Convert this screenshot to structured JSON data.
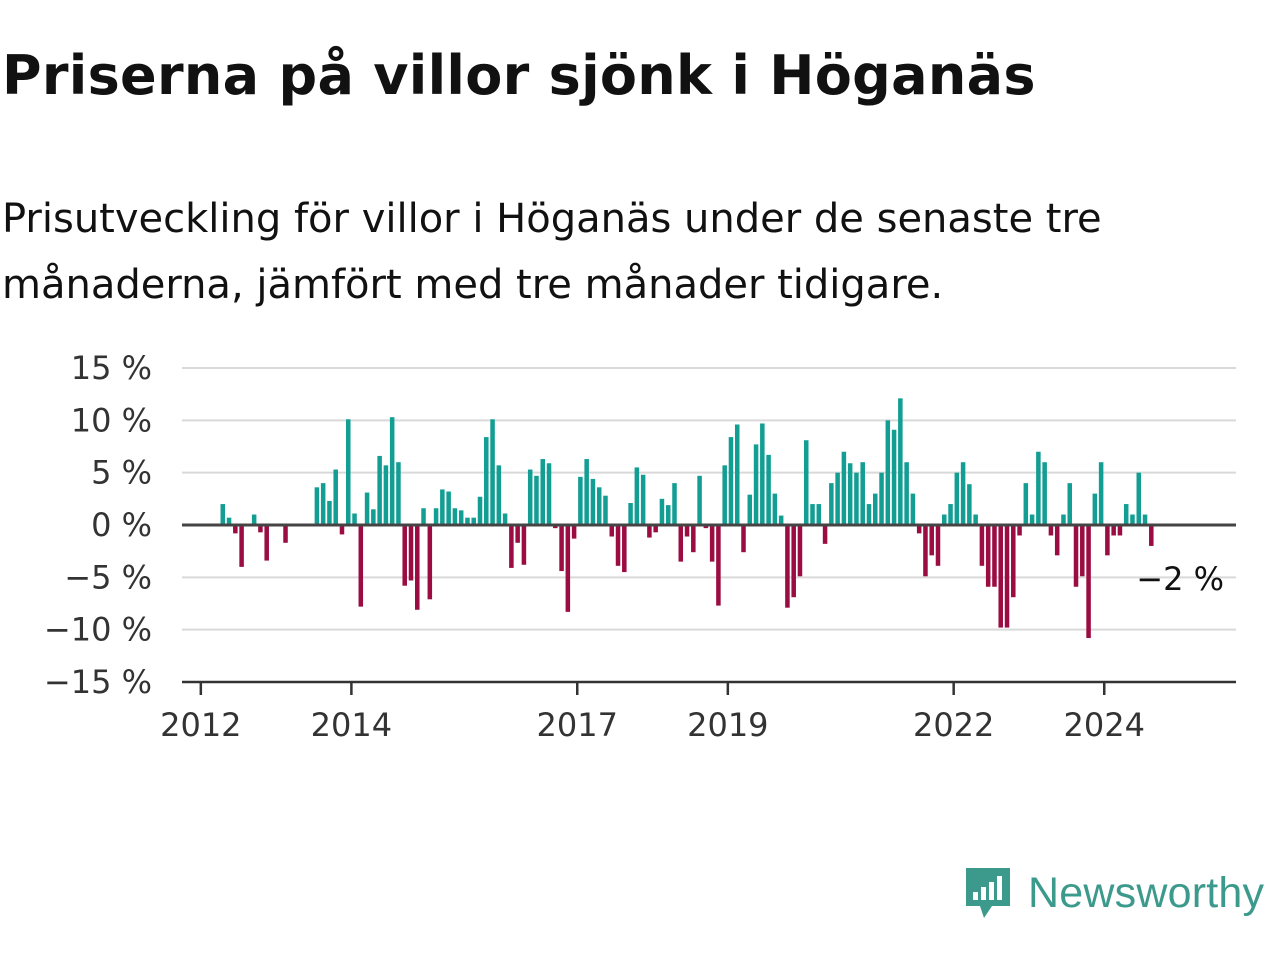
{
  "header": {
    "title": "Priserna på villor sjönk i Höganäs",
    "subtitle": "Prisutveckling för villor i Höganäs under de senaste tre månaderna, jämfört med tre månader tidigare."
  },
  "brand": {
    "name": "Newsworthy",
    "icon": "newsworthy-logo-icon",
    "color": "#3c9a8c"
  },
  "chart_data": {
    "type": "bar",
    "title": "",
    "xlabel": "",
    "ylabel": "",
    "ylim": [
      -15,
      15
    ],
    "yticks": [
      15,
      10,
      5,
      0,
      -5,
      -10,
      -15
    ],
    "ytick_labels": [
      "15 %",
      "10 %",
      "5 %",
      "0 %",
      "−5 %",
      "−10 %",
      "−15 %"
    ],
    "xticks": [
      "2012",
      "2014",
      "2017",
      "2019",
      "2022",
      "2024"
    ],
    "x_range": [
      "2011-10",
      "2025-10"
    ],
    "x_start": "2012-04",
    "grid": true,
    "positive_color": "#139e94",
    "negative_color": "#9b0d42",
    "end_label": "−2 %",
    "values": [
      2,
      0.7,
      -0.8,
      -4,
      0,
      1,
      -0.7,
      -3.4,
      0,
      0,
      -1.7,
      0,
      0,
      0,
      0,
      3.6,
      4,
      2.3,
      5.3,
      -0.9,
      10.1,
      1.1,
      -7.8,
      3.1,
      1.5,
      6.6,
      5.7,
      10.3,
      6.0,
      -5.8,
      -5.3,
      -8.1,
      1.6,
      -7.1,
      1.6,
      3.4,
      3.2,
      1.6,
      1.4,
      0.7,
      0.7,
      2.7,
      8.4,
      10.1,
      5.7,
      1.1,
      -4.1,
      -1.7,
      -3.8,
      5.3,
      4.7,
      6.3,
      5.9,
      -0.3,
      -4.4,
      -8.3,
      -1.3,
      4.6,
      6.3,
      4.4,
      3.6,
      2.8,
      -1.1,
      -3.9,
      -4.5,
      2.1,
      5.5,
      4.8,
      -1.2,
      -0.7,
      2.5,
      1.9,
      4.0,
      -3.5,
      -1.1,
      -2.6,
      4.7,
      -0.3,
      -3.5,
      -7.7,
      5.7,
      8.4,
      9.6,
      -2.6,
      2.9,
      7.7,
      9.7,
      6.7,
      3.0,
      0.9,
      -7.9,
      -6.9,
      -4.9,
      8.1,
      2.0,
      2.0,
      -1.8,
      4.0,
      5.0,
      7.0,
      5.9,
      5.0,
      6.0,
      2.0,
      3.0,
      5.0,
      10.0,
      9.1,
      12.1,
      6.0,
      3.0,
      -0.8,
      -4.9,
      -2.9,
      -3.9,
      1.0,
      2.0,
      5.0,
      6.0,
      3.9,
      1.0,
      -3.9,
      -5.9,
      -5.9,
      -9.8,
      -9.8,
      -6.9,
      -1.0,
      4.0,
      1.0,
      7.0,
      6.0,
      -1.0,
      -2.9,
      1.0,
      4.0,
      -5.9,
      -4.9,
      -10.8,
      3.0,
      6.0,
      -2.9,
      -1.0,
      -1.0,
      2.0,
      1.0,
      5.0,
      1.0,
      -2.0
    ]
  }
}
